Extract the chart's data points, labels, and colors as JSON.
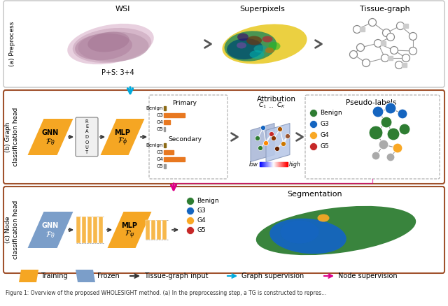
{
  "bg_color": "#ffffff",
  "orange_color": "#F5A623",
  "orange_light": "#F7B84B",
  "blue_frozen": "#7B9EC9",
  "border_gray": "#888888",
  "border_brown": "#A0522D",
  "cyan_arrow": "#00AADD",
  "magenta_arrow": "#DD0088",
  "dark_arrow": "#555555",
  "green_benign": "#2E7D32",
  "blue_g3": "#1565C0",
  "yellow_g4": "#F9A825",
  "red_g5": "#C62828",
  "panel_a_label": "(a) Preprocess",
  "panel_b_label": "(b) Graph\nclassification head",
  "panel_c_label": "(c) Node\nclassification head",
  "wsi_label": "WSI",
  "superpixels_label": "Superpixels",
  "tissue_graph_label": "Tissue-graph",
  "ps_label": "P+S: 3+4",
  "attribution_label": "Attribution",
  "pseudo_labels_label": "Pseudo-labels",
  "segmentation_label": "Segmentation",
  "legend_training": "Training",
  "legend_frozen": "Frozen",
  "legend_tg": "Tissue-graph input",
  "legend_graph": "Graph supervision",
  "legend_node": "Node supervision",
  "primary_label": "Primary",
  "secondary_label": "Secondary",
  "benign_label": "Benign",
  "g3_label": "G3",
  "g4_label": "G4",
  "g5_label": "G5",
  "low_label": "low",
  "high_label": "high",
  "readout_label": "R\nE\nA\nD\nO\nU\nT",
  "figure_caption": "Figure 1: Overview of the proposed WHOLESIGHT method. (a) In the preprocessing step, a TG is constructed to repres..."
}
